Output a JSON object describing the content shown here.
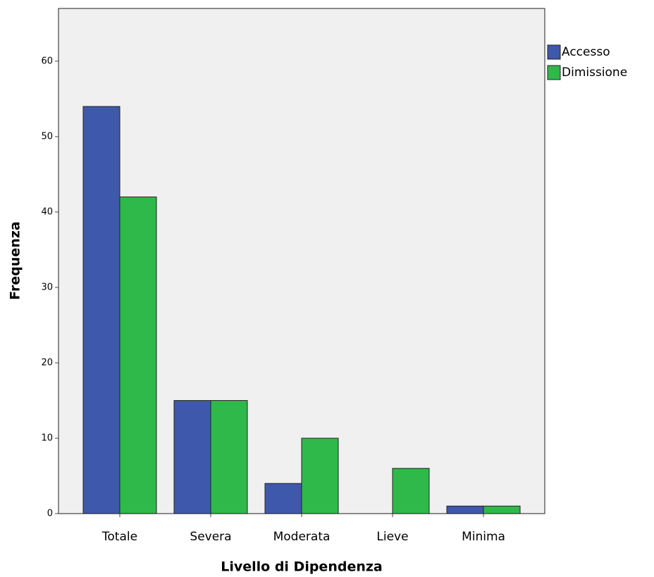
{
  "chart_data": {
    "type": "bar",
    "x_label": "Livello di Dipendenza",
    "y_label": "Frequenza",
    "categories": [
      "Totale",
      "Severa",
      "Moderata",
      "Lieve",
      "Minima"
    ],
    "series": [
      {
        "name": "Accesso",
        "color": "#3e58ac",
        "values": [
          54,
          15,
          4,
          0,
          1
        ]
      },
      {
        "name": "Dimissione",
        "color": "#2fb94a",
        "values": [
          42,
          15,
          10,
          6,
          1
        ]
      }
    ],
    "ylim": [
      0,
      67
    ],
    "yticks": [
      0,
      10,
      20,
      30,
      40,
      50,
      60
    ],
    "grid": false,
    "legend": "right"
  }
}
